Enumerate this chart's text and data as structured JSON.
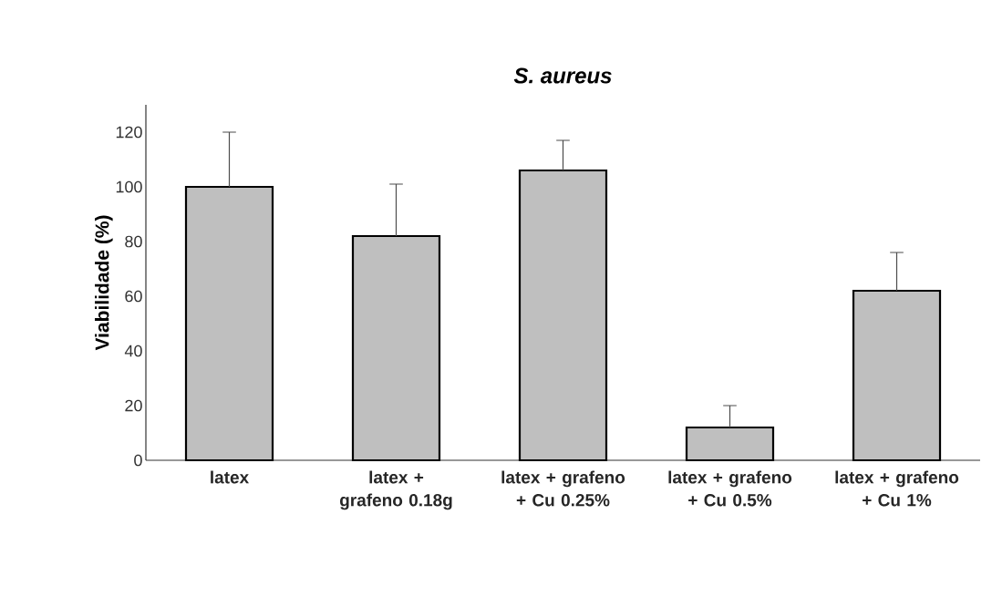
{
  "chart_data": {
    "type": "bar",
    "title": "S. aureus",
    "ylabel": "Viabilidade (%)",
    "categories": [
      "latex",
      "latex + grafeno 0.18g",
      "latex + grafeno + Cu 0.25%",
      "latex + grafeno + Cu 0.5%",
      "latex + grafeno + Cu 1%"
    ],
    "values": [
      100,
      82,
      106,
      12,
      62
    ],
    "errors": [
      [
        100,
        120
      ],
      [
        82,
        101
      ],
      [
        106,
        117
      ],
      [
        12,
        20
      ],
      [
        62,
        76
      ]
    ],
    "color": "#bfbfbf",
    "ylim": [
      0,
      130
    ],
    "yticks": [
      0,
      20,
      40,
      60,
      80,
      100,
      120
    ],
    "grid": false
  }
}
